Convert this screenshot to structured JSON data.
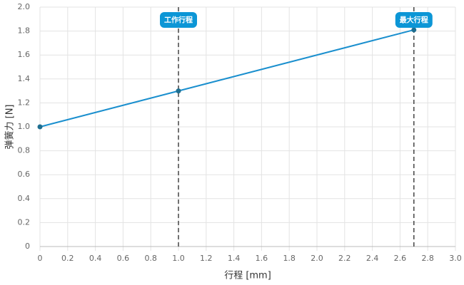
{
  "chart_data": {
    "type": "line",
    "y_label": "弹簧力 [N]",
    "x_label": "行程 [mm]",
    "x": [
      0,
      1,
      2.7
    ],
    "series": [
      {
        "values": [
          1,
          1.3,
          1.81
        ],
        "color": "#1a8fce",
        "marker_color": "#1f6f91"
      }
    ],
    "xlim": [
      0,
      3
    ],
    "ylim": [
      0,
      2
    ],
    "xticks": [
      0,
      0.2,
      0.4,
      0.6,
      0.8,
      {
        "value": 1,
        "label": "1.0"
      },
      1.2,
      1.4,
      1.6,
      1.8,
      {
        "value": 2,
        "label": "2.0"
      },
      2.2,
      2.4,
      2.6,
      2.8,
      {
        "value": 3,
        "label": "3.0"
      }
    ],
    "yticks": [
      0,
      0.2,
      0.4,
      0.6,
      0.8,
      {
        "value": 1,
        "label": "1.0"
      },
      1.2,
      1.4,
      1.6,
      1.8,
      {
        "value": 2,
        "label": "2.0"
      }
    ],
    "grid": true,
    "annotations": [
      {
        "x": 1,
        "label": "工作行程"
      },
      {
        "x": 2.7,
        "label": "最大行程"
      }
    ]
  }
}
